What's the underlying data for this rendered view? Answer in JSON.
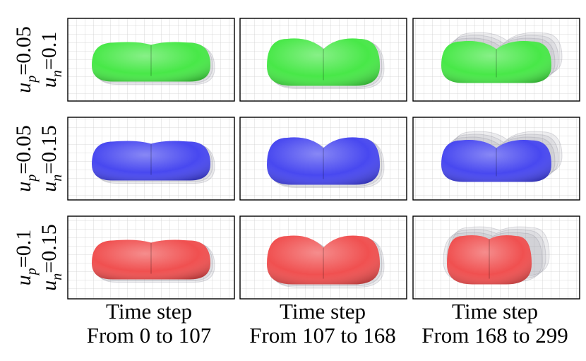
{
  "figure": {
    "rows": [
      {
        "up_label": "u",
        "up_sub": "p",
        "up_value": "=0.05",
        "un_label": "u",
        "un_sub": "n",
        "un_value": "=0.1",
        "color": "#48e848"
      },
      {
        "up_label": "u",
        "up_sub": "p",
        "up_value": "=0.05",
        "un_label": "u",
        "un_sub": "n",
        "un_value": "=0.15",
        "color": "#4848f0"
      },
      {
        "up_label": "u",
        "up_sub": "p",
        "up_value": "=0.1",
        "un_label": "u",
        "un_sub": "n",
        "un_value": "=0.15",
        "color": "#f05050"
      }
    ],
    "columns": [
      {
        "line1": "Time step",
        "line2": "From 0 to 107"
      },
      {
        "line1": "Time step",
        "line2": "From 107 to 168"
      },
      {
        "line1": "Time step",
        "line2": "From 168 to 299"
      }
    ]
  }
}
